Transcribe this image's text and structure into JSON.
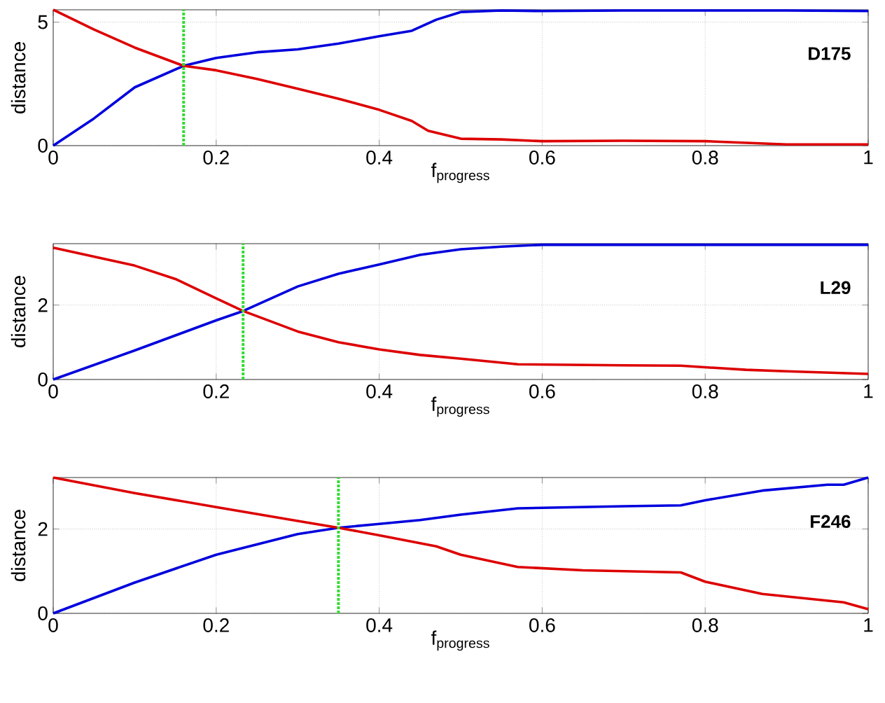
{
  "chart_data": [
    {
      "type": "line",
      "xlabel": "f$_{progress}$",
      "ylabel": "distance",
      "annotations": [
        "D175"
      ],
      "xlim": [
        0,
        1
      ],
      "ylim": [
        0,
        5.5
      ],
      "xticks": [
        0,
        0.2,
        0.4,
        0.6,
        0.8,
        1
      ],
      "yticks": [
        0,
        5
      ],
      "grid": true,
      "line_style": "solid",
      "ref_lines": [
        {
          "axis": "x",
          "value": 0.16,
          "color": "#33dd33",
          "line_style": "dotted"
        }
      ],
      "series": [
        {
          "color": "#0000dd",
          "x": [
            0,
            0.05,
            0.1,
            0.16,
            0.2,
            0.25,
            0.3,
            0.35,
            0.4,
            0.44,
            0.47,
            0.5,
            0.55,
            0.6,
            0.7,
            0.8,
            0.9,
            1
          ],
          "values": [
            0,
            1.1,
            2.36,
            3.23,
            3.55,
            3.78,
            3.9,
            4.13,
            4.43,
            4.65,
            5.1,
            5.41,
            5.47,
            5.45,
            5.47,
            5.47,
            5.47,
            5.45
          ]
        },
        {
          "color": "#dd0000",
          "x": [
            0,
            0.05,
            0.1,
            0.16,
            0.2,
            0.25,
            0.3,
            0.35,
            0.4,
            0.44,
            0.46,
            0.5,
            0.55,
            0.6,
            0.7,
            0.8,
            0.9,
            1
          ],
          "values": [
            5.5,
            4.7,
            3.97,
            3.23,
            3.05,
            2.7,
            2.3,
            1.9,
            1.45,
            1.0,
            0.6,
            0.28,
            0.25,
            0.18,
            0.2,
            0.18,
            0.05,
            0.05
          ]
        }
      ]
    },
    {
      "type": "line",
      "xlabel": "f$_{progress}$",
      "ylabel": "distance",
      "annotations": [
        "L29"
      ],
      "xlim": [
        0,
        1
      ],
      "ylim": [
        0,
        3.65
      ],
      "xticks": [
        0,
        0.2,
        0.4,
        0.6,
        0.8,
        1
      ],
      "yticks": [
        0,
        2
      ],
      "grid": true,
      "line_style": "solid",
      "ref_lines": [
        {
          "axis": "x",
          "value": 0.233,
          "color": "#33dd33",
          "line_style": "dotted"
        }
      ],
      "series": [
        {
          "color": "#0000dd",
          "x": [
            0,
            0.1,
            0.2,
            0.233,
            0.3,
            0.35,
            0.4,
            0.45,
            0.5,
            0.55,
            0.6,
            0.8,
            1
          ],
          "values": [
            0,
            0.78,
            1.59,
            1.84,
            2.5,
            2.84,
            3.09,
            3.35,
            3.5,
            3.57,
            3.62,
            3.62,
            3.62
          ]
        },
        {
          "color": "#dd0000",
          "x": [
            0,
            0.1,
            0.15,
            0.2,
            0.233,
            0.3,
            0.35,
            0.4,
            0.45,
            0.5,
            0.57,
            0.7,
            0.77,
            0.85,
            0.9,
            1
          ],
          "values": [
            3.54,
            3.06,
            2.7,
            2.18,
            1.84,
            1.29,
            1.0,
            0.81,
            0.66,
            0.56,
            0.41,
            0.38,
            0.37,
            0.26,
            0.22,
            0.15
          ]
        }
      ]
    },
    {
      "type": "line",
      "xlabel": "f$_{progress}$",
      "ylabel": "distance",
      "annotations": [
        "F246"
      ],
      "xlim": [
        0,
        1
      ],
      "ylim": [
        0,
        3.22
      ],
      "xticks": [
        0,
        0.2,
        0.4,
        0.6,
        0.8,
        1
      ],
      "yticks": [
        0,
        2
      ],
      "grid": true,
      "line_style": "solid",
      "ref_lines": [
        {
          "axis": "x",
          "value": 0.35,
          "color": "#33dd33",
          "line_style": "dotted"
        }
      ],
      "series": [
        {
          "color": "#0000dd",
          "x": [
            0,
            0.1,
            0.2,
            0.3,
            0.35,
            0.4,
            0.45,
            0.5,
            0.57,
            0.7,
            0.77,
            0.8,
            0.87,
            0.95,
            0.97,
            1
          ],
          "values": [
            0,
            0.73,
            1.39,
            1.88,
            2.03,
            2.12,
            2.21,
            2.34,
            2.49,
            2.54,
            2.56,
            2.68,
            2.91,
            3.05,
            3.05,
            3.22
          ]
        },
        {
          "color": "#dd0000",
          "x": [
            0,
            0.1,
            0.2,
            0.3,
            0.35,
            0.4,
            0.47,
            0.5,
            0.57,
            0.65,
            0.7,
            0.77,
            0.8,
            0.87,
            0.97,
            1
          ],
          "values": [
            3.22,
            2.85,
            2.52,
            2.19,
            2.03,
            1.85,
            1.59,
            1.39,
            1.1,
            1.02,
            1.0,
            0.97,
            0.75,
            0.46,
            0.26,
            0.1
          ]
        }
      ]
    }
  ]
}
